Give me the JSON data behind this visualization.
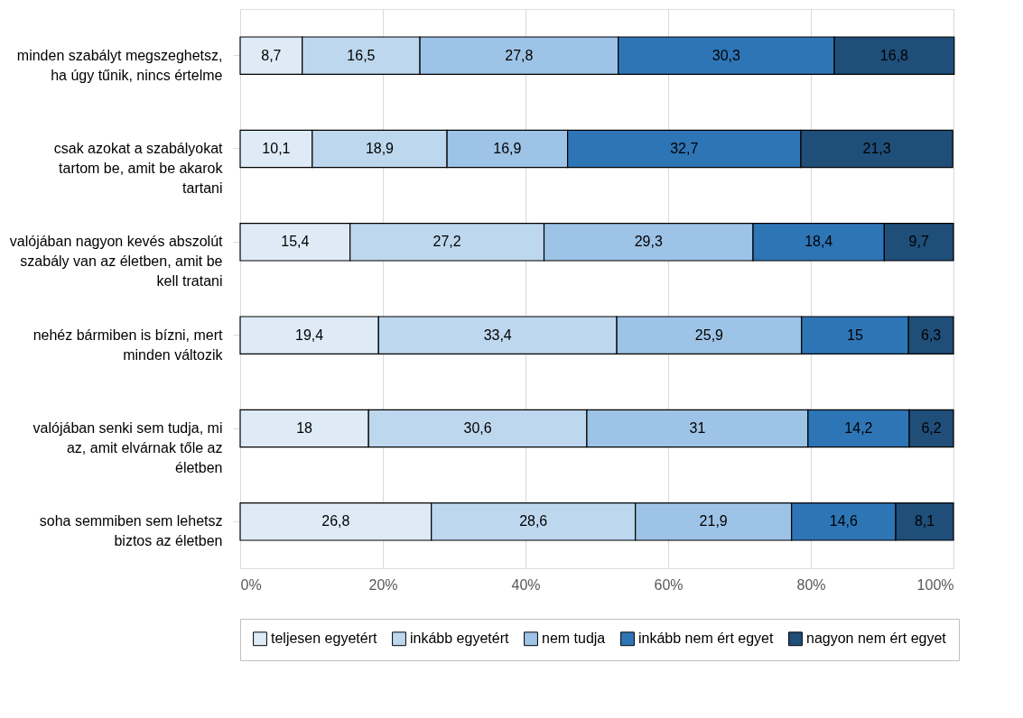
{
  "chart_data": {
    "type": "bar",
    "orientation": "horizontal",
    "stacked": true,
    "categories": [
      "minden szabályt megszeghetsz, ha úgy tűnik, nincs értelme",
      "csak azokat a szabályokat tartom be, amit be akarok tartani",
      "valójában nagyon kevés abszolút szabály van az életben, amit be kell tratani",
      "nehéz bármiben is bízni, mert minden változik",
      "valójában senki sem tudja, mi az, amit elvárnak tőle az életben",
      "soha semmiben sem lehetsz biztos az életben"
    ],
    "series": [
      {
        "name": "teljesen egyetért",
        "color": "#deebf7",
        "values": [
          8.7,
          10.1,
          15.4,
          19.4,
          18,
          26.8
        ],
        "value_labels": [
          "8,7",
          "10,1",
          "15,4",
          "19,4",
          "18",
          "26,8"
        ]
      },
      {
        "name": "inkább egyetért",
        "color": "#bdd7ee",
        "values": [
          16.5,
          18.9,
          27.2,
          33.4,
          30.6,
          28.6
        ],
        "value_labels": [
          "16,5",
          "18,9",
          "27,2",
          "33,4",
          "30,6",
          "28,6"
        ]
      },
      {
        "name": "nem tudja",
        "color": "#9dc3e6",
        "values": [
          27.8,
          16.9,
          29.3,
          25.9,
          31,
          21.9
        ],
        "value_labels": [
          "27,8",
          "16,9",
          "29,3",
          "25,9",
          "31",
          "21,9"
        ]
      },
      {
        "name": "inkább nem ért egyet",
        "color": "#2e75b6",
        "values": [
          30.3,
          32.7,
          18.4,
          15,
          14.2,
          14.6
        ],
        "value_labels": [
          "30,3",
          "32,7",
          "18,4",
          "15",
          "14,2",
          "14,6"
        ]
      },
      {
        "name": "nagyon nem ért egyet",
        "color": "#1f4e79",
        "values": [
          16.8,
          21.3,
          9.7,
          6.3,
          6.2,
          8.1
        ],
        "value_labels": [
          "16,8",
          "21,3",
          "9,7",
          "6,3",
          "6,2",
          "8,1"
        ]
      }
    ],
    "xlim": [
      0,
      100
    ],
    "xticks": [
      {
        "value": 0,
        "label": "0%"
      },
      {
        "value": 20,
        "label": "20%"
      },
      {
        "value": 40,
        "label": "40%"
      },
      {
        "value": 60,
        "label": "60%"
      },
      {
        "value": 80,
        "label": "80%"
      },
      {
        "value": 100,
        "label": "100%"
      }
    ],
    "grid": "x",
    "legend": "bottom"
  }
}
